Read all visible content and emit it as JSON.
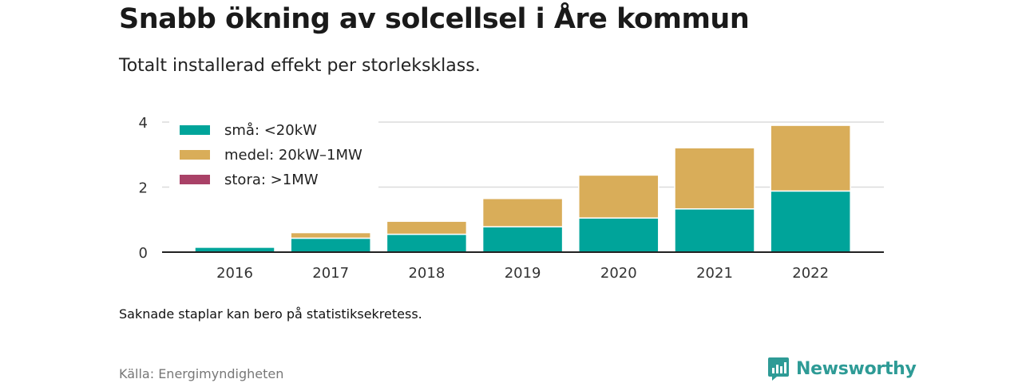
{
  "title": "Snabb ökning av solcellsel i Åre kommun",
  "subtitle": "Totalt installerad effekt per storleksklass.",
  "note": "Saknade staplar kan bero på statistiksekretess.",
  "source": "Källa: Energimyndigheten",
  "brand": {
    "name": "Newsworthy",
    "icon": "newsworthy-logo-icon",
    "color": "#2e9b96"
  },
  "chart_data": {
    "type": "bar",
    "stacked": true,
    "categories": [
      "2016",
      "2017",
      "2018",
      "2019",
      "2020",
      "2021",
      "2022"
    ],
    "series": [
      {
        "name": "små: <20kW",
        "color": "#00a49a",
        "values": [
          0.15,
          0.43,
          0.55,
          0.78,
          1.05,
          1.33,
          1.88
        ]
      },
      {
        "name": "medel: 20kW–1MW",
        "color": "#d9ad59",
        "values": [
          0.0,
          0.17,
          0.4,
          0.87,
          1.32,
          1.88,
          2.02
        ]
      },
      {
        "name": "stora: >1MW",
        "color": "#a94167",
        "values": [
          0,
          0,
          0,
          0,
          0,
          0,
          0
        ]
      }
    ],
    "ylim": [
      0,
      4
    ],
    "yticks": [
      0,
      2,
      4
    ],
    "xlabel": "",
    "ylabel": "",
    "grid": true,
    "legend": "top-left"
  }
}
